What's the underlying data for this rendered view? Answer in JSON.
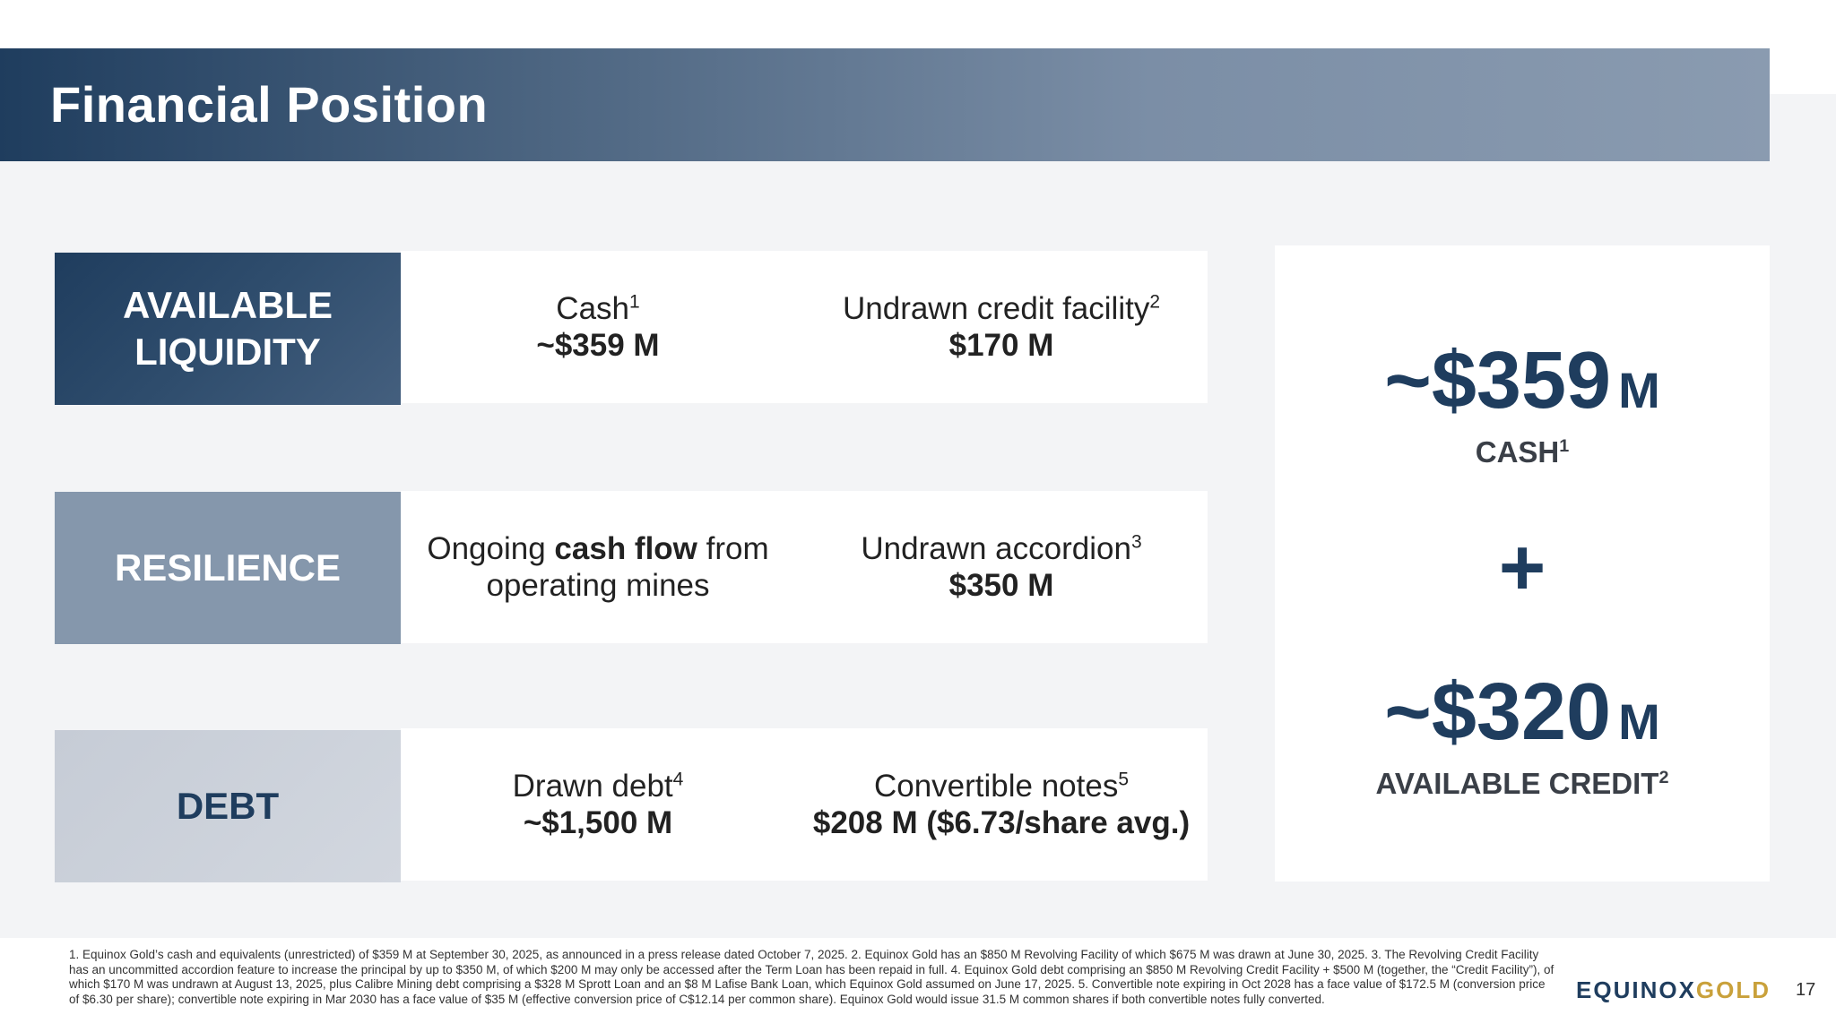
{
  "header": {
    "title": "Financial Position"
  },
  "rows": [
    {
      "label": "AVAILABLE LIQUIDITY",
      "left": {
        "text": "Cash",
        "sup": "1",
        "value": "~$359 M"
      },
      "right": {
        "text": "Undrawn credit facility",
        "sup": "2",
        "value": "$170 M"
      }
    },
    {
      "label": "RESILIENCE",
      "left": {
        "text_pre": "Ongoing ",
        "text_bold": "cash flow",
        "text_post": " from",
        "text_line2": "operating mines"
      },
      "right": {
        "text": "Undrawn accordion",
        "sup": "3",
        "value": "$350 M"
      }
    },
    {
      "label": "DEBT",
      "left": {
        "text": "Drawn debt",
        "sup": "4",
        "value": "~$1,500 M"
      },
      "right": {
        "text": "Convertible notes",
        "sup": "5",
        "value": "$208 M ($6.73/share avg.)"
      }
    }
  ],
  "summary": {
    "cash_value": "~$359",
    "cash_unit": "M",
    "cash_label": "CASH",
    "cash_sup": "1",
    "plus": "+",
    "credit_value": "~$320",
    "credit_unit": "M",
    "credit_label": "AVAILABLE CREDIT",
    "credit_sup": "2"
  },
  "footnote": "1. Equinox Gold’s cash and equivalents (unrestricted) of $359 M at September 30, 2025, as announced in a press release dated October 7, 2025. 2. Equinox Gold has an $850 M Revolving Facility of which $675 M was drawn at June 30, 2025. 3. The Revolving Credit Facility has an uncommitted accordion feature to increase the principal by up to $350 M, of which $200 M may only be accessed after the Term Loan has been repaid in full. 4. Equinox Gold debt comprising an $850 M Revolving Credit Facility + $500 M (together, the “Credit Facility”), of which $170 M was undrawn at August 13, 2025, plus Calibre Mining debt comprising a $328 M Sprott Loan and an $8 M Lafise Bank Loan, which Equinox Gold assumed on June 17, 2025. 5. Convertible note expiring in Oct 2028 has a face value of $172.5 M (conversion price of $6.30 per share); convertible note expiring in Mar 2030 has a face value of $35 M (effective conversion price of C$12.14 per common share). Equinox Gold would issue 31.5 M common shares if both convertible notes fully converted.",
  "logo": {
    "part1": "EQUINOX",
    "part2": "GOLD"
  },
  "page_number": "17",
  "colors": {
    "navy": "#1f3d5e",
    "gold": "#c9a13b",
    "slate": "#8597ac",
    "light": "#c6ccd6"
  }
}
